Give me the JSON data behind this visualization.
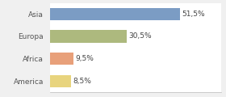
{
  "categories": [
    "Asia",
    "Europa",
    "Africa",
    "America"
  ],
  "values": [
    51.5,
    30.5,
    9.5,
    8.5
  ],
  "bar_colors": [
    "#7b9cc4",
    "#adb97e",
    "#e8a07a",
    "#e8d47e"
  ],
  "labels": [
    "51,5%",
    "30,5%",
    "9,5%",
    "8,5%"
  ],
  "background_color": "#f0f0f0",
  "xlim": [
    0,
    68
  ],
  "label_fontsize": 6.5,
  "tick_fontsize": 6.5,
  "bar_height": 0.55
}
